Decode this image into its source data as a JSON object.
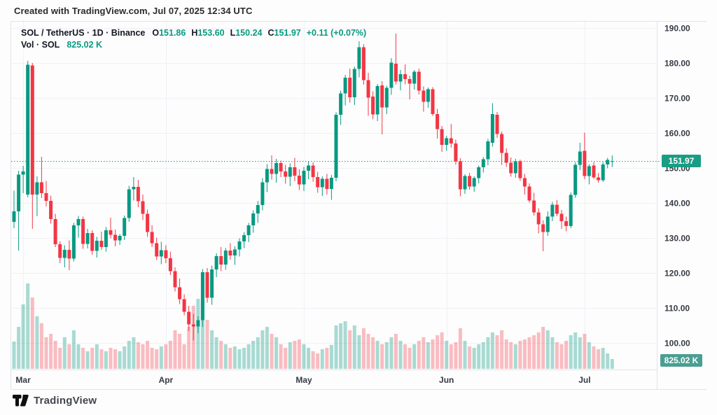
{
  "header": {
    "credit": "Created with TradingView.com, Jul 07, 2025 12:34 UTC"
  },
  "legend": {
    "symbol": "SOL / TetherUS · 1D · Binance",
    "o_label": "O",
    "o_value": "151.86",
    "h_label": "H",
    "h_value": "153.60",
    "l_label": "L",
    "l_value": "150.24",
    "c_label": "C",
    "c_value": "151.97",
    "change": "+0.11 (+0.07%)",
    "vol_title": "Vol · SOL",
    "vol_value": "825.02 K"
  },
  "footer": {
    "logo_text": "TradingView"
  },
  "colors": {
    "up": "#089981",
    "down": "#f23645",
    "vol_up": "rgba(8,153,129,0.35)",
    "vol_down": "rgba(242,54,69,0.32)",
    "grid": "#eef1f7",
    "border": "#e0e3eb",
    "axis_text": "#363a45",
    "price_line": "#089981",
    "badge_price_bg": "#199d84",
    "badge_volume_bg": "#4a9e92"
  },
  "chart_data": {
    "type": "candlestick",
    "title": "SOL / TetherUS · 1D · Binance",
    "subtitle": "Vol · SOL 825.02 K",
    "legend_position": "top-left",
    "grid": true,
    "price_axis": {
      "side": "right",
      "min": 100,
      "max": 190,
      "ticks": [
        "190.00",
        "180.00",
        "170.00",
        "160.00",
        "150.00",
        "140.00",
        "130.00",
        "120.00",
        "110.00",
        "100.00"
      ]
    },
    "time_axis": {
      "months": [
        {
          "label": "Mar",
          "candle_index": 2
        },
        {
          "label": "Apr",
          "candle_index": 33
        },
        {
          "label": "May",
          "candle_index": 63
        },
        {
          "label": "Jun",
          "candle_index": 94
        },
        {
          "label": "Jul",
          "candle_index": 124
        }
      ]
    },
    "last_price": 151.97,
    "last_price_label": "151.97",
    "last_volume_k": 825.02,
    "volume_badge_label": "825.02 K",
    "candle_format": [
      "date",
      "open",
      "high",
      "low",
      "close",
      "volume_k"
    ],
    "candles": [
      [
        "Feb 27",
        134.6,
        143.5,
        132.8,
        137.6,
        2300
      ],
      [
        "Feb 28",
        137.6,
        149.2,
        126.4,
        148.1,
        3540
      ],
      [
        "Mar 1",
        148.1,
        150.6,
        142.8,
        149.0,
        5430
      ],
      [
        "Mar 2",
        142.4,
        180.6,
        141.6,
        179.5,
        7200
      ],
      [
        "Mar 3",
        179.3,
        180.0,
        132.6,
        142.4,
        6020
      ],
      [
        "Mar 4",
        142.4,
        147.6,
        136.2,
        145.9,
        4430
      ],
      [
        "Mar 5",
        145.9,
        153.2,
        141.4,
        142.8,
        3840
      ],
      [
        "Mar 6",
        142.8,
        146.3,
        139.0,
        140.6,
        2660
      ],
      [
        "Mar 7",
        140.6,
        142.1,
        134.1,
        135.4,
        2950
      ],
      [
        "Mar 8",
        135.4,
        136.9,
        127.4,
        128.2,
        2360
      ],
      [
        "Mar 9",
        128.2,
        129.0,
        122.8,
        124.3,
        1770
      ],
      [
        "Mar 10",
        124.3,
        127.9,
        121.6,
        126.6,
        2660
      ],
      [
        "Mar 11",
        126.6,
        129.3,
        120.8,
        124.1,
        2070
      ],
      [
        "Mar 12",
        124.1,
        134.3,
        123.3,
        133.6,
        3250
      ],
      [
        "Mar 13",
        133.6,
        136.3,
        130.1,
        135.4,
        2070
      ],
      [
        "Mar 14",
        135.4,
        136.1,
        126.9,
        128.3,
        1770
      ],
      [
        "Mar 15",
        128.3,
        132.6,
        127.0,
        131.4,
        1480
      ],
      [
        "Mar 16",
        131.4,
        132.2,
        125.2,
        126.3,
        1770
      ],
      [
        "Mar 17",
        126.3,
        130.3,
        124.4,
        129.2,
        2070
      ],
      [
        "Mar 18",
        129.2,
        131.8,
        126.6,
        127.4,
        1650
      ],
      [
        "Mar 19",
        127.4,
        133.1,
        126.1,
        132.2,
        1480
      ],
      [
        "Mar 20",
        132.2,
        135.8,
        129.9,
        130.9,
        1770
      ],
      [
        "Mar 21",
        130.9,
        132.4,
        127.6,
        129.3,
        1650
      ],
      [
        "Mar 22",
        129.3,
        131.1,
        128.0,
        130.6,
        1480
      ],
      [
        "Mar 23",
        130.6,
        136.4,
        129.4,
        135.7,
        1890
      ],
      [
        "Mar 24",
        135.7,
        144.9,
        134.6,
        143.9,
        2360
      ],
      [
        "Mar 25",
        143.9,
        147.4,
        140.7,
        144.6,
        2660
      ],
      [
        "Mar 26",
        144.6,
        146.6,
        138.8,
        140.5,
        2240
      ],
      [
        "Mar 27",
        140.5,
        142.4,
        135.1,
        136.9,
        2070
      ],
      [
        "Mar 28",
        136.9,
        138.1,
        130.3,
        131.7,
        2360
      ],
      [
        "Mar 29",
        131.7,
        133.6,
        127.4,
        128.5,
        1770
      ],
      [
        "Mar 30",
        128.5,
        130.1,
        123.7,
        124.7,
        1650
      ],
      [
        "Mar 31",
        124.7,
        128.9,
        122.5,
        126.5,
        1890
      ],
      [
        "Apr 1",
        126.5,
        127.9,
        122.8,
        124.2,
        2070
      ],
      [
        "Apr 2",
        124.2,
        126.1,
        119.4,
        120.5,
        2360
      ],
      [
        "Apr 3",
        120.5,
        121.6,
        114.7,
        115.9,
        3250
      ],
      [
        "Apr 4",
        115.9,
        118.4,
        111.1,
        112.5,
        2950
      ],
      [
        "Apr 5",
        112.5,
        113.9,
        107.9,
        108.9,
        2070
      ],
      [
        "Apr 6",
        108.9,
        110.6,
        103.4,
        105.3,
        3540
      ],
      [
        "Apr 7",
        105.3,
        108.3,
        100.7,
        104.7,
        5310
      ],
      [
        "Apr 8",
        104.7,
        107.6,
        102.8,
        106.5,
        5900
      ],
      [
        "Apr 9",
        106.5,
        121.1,
        104.6,
        120.2,
        5610
      ],
      [
        "Apr 10",
        120.2,
        121.4,
        111.5,
        112.9,
        4130
      ],
      [
        "Apr 11",
        112.9,
        122.1,
        110.9,
        121.0,
        3250
      ],
      [
        "Apr 12",
        121.0,
        125.6,
        118.8,
        124.8,
        2660
      ],
      [
        "Apr 13",
        124.8,
        127.4,
        120.5,
        122.4,
        2360
      ],
      [
        "Apr 14",
        122.4,
        127.1,
        120.9,
        126.4,
        2070
      ],
      [
        "Apr 15",
        126.4,
        128.5,
        123.8,
        125.0,
        1770
      ],
      [
        "Apr 16",
        125.0,
        127.6,
        122.3,
        126.7,
        1890
      ],
      [
        "Apr 17",
        126.7,
        129.9,
        124.7,
        129.0,
        1650
      ],
      [
        "Apr 18",
        129.0,
        131.6,
        127.1,
        130.8,
        1770
      ],
      [
        "Apr 19",
        130.8,
        134.3,
        128.8,
        133.6,
        2070
      ],
      [
        "Apr 20",
        133.6,
        137.9,
        131.5,
        137.0,
        2360
      ],
      [
        "Apr 21",
        137.0,
        140.6,
        134.3,
        139.4,
        2660
      ],
      [
        "Apr 22",
        139.4,
        147.1,
        137.9,
        145.9,
        3250
      ],
      [
        "Apr 23",
        145.9,
        151.1,
        143.1,
        149.7,
        3540
      ],
      [
        "Apr 24",
        149.7,
        153.6,
        146.7,
        148.3,
        2950
      ],
      [
        "Apr 25",
        148.3,
        152.6,
        145.8,
        151.4,
        2660
      ],
      [
        "Apr 26",
        151.4,
        152.1,
        147.4,
        149.0,
        2070
      ],
      [
        "Apr 27",
        149.0,
        150.9,
        145.5,
        147.5,
        1770
      ],
      [
        "Apr 28",
        147.5,
        151.3,
        144.8,
        150.2,
        2240
      ],
      [
        "Apr 29",
        150.2,
        152.9,
        146.2,
        147.8,
        2360
      ],
      [
        "Apr 30",
        147.8,
        149.6,
        143.7,
        145.3,
        2480
      ],
      [
        "May 1",
        145.3,
        150.3,
        143.4,
        149.2,
        2070
      ],
      [
        "May 2",
        149.2,
        151.9,
        146.8,
        150.7,
        1770
      ],
      [
        "May 3",
        150.7,
        151.6,
        146.1,
        147.4,
        1480
      ],
      [
        "May 4",
        147.4,
        148.9,
        142.9,
        144.5,
        1300
      ],
      [
        "May 5",
        144.5,
        147.6,
        142.0,
        146.9,
        1650
      ],
      [
        "May 6",
        146.9,
        148.3,
        142.4,
        144.0,
        1770
      ],
      [
        "May 7",
        144.0,
        148.0,
        140.9,
        147.2,
        2010
      ],
      [
        "May 8",
        147.2,
        165.9,
        146.2,
        165.2,
        3660
      ],
      [
        "May 9",
        165.2,
        172.1,
        162.3,
        171.3,
        3840
      ],
      [
        "May 10",
        171.3,
        176.6,
        167.9,
        175.8,
        4010
      ],
      [
        "May 11",
        175.8,
        178.4,
        168.7,
        170.2,
        3250
      ],
      [
        "May 12",
        170.2,
        179.0,
        168.0,
        178.3,
        3660
      ],
      [
        "May 13",
        178.3,
        186.2,
        175.9,
        184.5,
        2830
      ],
      [
        "May 14",
        184.5,
        185.4,
        173.8,
        175.1,
        3420
      ],
      [
        "May 15",
        175.1,
        177.2,
        164.9,
        170.1,
        2950
      ],
      [
        "May 16",
        170.4,
        171.9,
        163.9,
        165.3,
        2660
      ],
      [
        "May 17",
        165.3,
        174.0,
        163.4,
        173.4,
        2360
      ],
      [
        "May 18",
        173.6,
        174.8,
        159.6,
        167.3,
        2070
      ],
      [
        "May 19",
        167.3,
        173.5,
        165.4,
        172.9,
        2240
      ],
      [
        "May 20",
        172.9,
        181.4,
        170.9,
        180.1,
        2660
      ],
      [
        "May 21",
        179.8,
        188.4,
        173.9,
        174.7,
        2950
      ],
      [
        "May 22",
        174.7,
        178.0,
        172.2,
        176.8,
        2360
      ],
      [
        "May 23",
        176.8,
        179.6,
        173.9,
        175.4,
        2070
      ],
      [
        "May 24",
        175.4,
        176.3,
        169.6,
        174.1,
        1770
      ],
      [
        "May 25",
        174.1,
        178.0,
        172.4,
        177.5,
        2070
      ],
      [
        "May 26",
        177.5,
        178.4,
        171.0,
        172.1,
        2360
      ],
      [
        "May 27",
        172.1,
        173.3,
        166.1,
        168.9,
        2660
      ],
      [
        "May 28",
        168.9,
        173.0,
        167.2,
        172.5,
        2240
      ],
      [
        "May 29",
        172.5,
        173.1,
        164.9,
        165.4,
        2480
      ],
      [
        "May 30",
        165.4,
        166.9,
        158.4,
        161.1,
        2830
      ],
      [
        "May 31",
        161.1,
        162.0,
        154.6,
        156.6,
        3070
      ],
      [
        "Jun 1",
        156.6,
        159.2,
        154.9,
        158.5,
        2360
      ],
      [
        "Jun 2",
        158.5,
        162.6,
        155.8,
        157.0,
        2070
      ],
      [
        "Jun 3",
        157.0,
        158.1,
        150.9,
        151.9,
        2240
      ],
      [
        "Jun 4",
        151.9,
        152.8,
        141.9,
        143.9,
        3420
      ],
      [
        "Jun 5",
        143.9,
        148.2,
        142.6,
        147.7,
        2360
      ],
      [
        "Jun 6",
        147.7,
        148.6,
        143.8,
        144.7,
        1890
      ],
      [
        "Jun 7",
        144.7,
        147.6,
        143.2,
        147.1,
        1770
      ],
      [
        "Jun 8",
        147.1,
        150.7,
        145.6,
        150.2,
        2070
      ],
      [
        "Jun 9",
        150.2,
        153.1,
        148.7,
        152.5,
        2240
      ],
      [
        "Jun 10",
        152.5,
        158.3,
        150.8,
        157.6,
        2660
      ],
      [
        "Jun 11",
        157.2,
        168.5,
        156.1,
        165.4,
        3070
      ],
      [
        "Jun 12",
        165.2,
        166.0,
        158.6,
        159.7,
        2830
      ],
      [
        "Jun 13",
        159.7,
        160.4,
        150.9,
        154.3,
        3250
      ],
      [
        "Jun 14",
        154.3,
        155.6,
        150.3,
        151.5,
        2480
      ],
      [
        "Jun 15",
        151.5,
        153.0,
        147.5,
        148.5,
        2240
      ],
      [
        "Jun 16",
        148.5,
        152.6,
        147.2,
        151.9,
        2070
      ],
      [
        "Jun 17",
        151.9,
        152.4,
        146.3,
        147.1,
        2360
      ],
      [
        "Jun 18",
        147.1,
        148.3,
        142.4,
        144.7,
        2480
      ],
      [
        "Jun 19",
        144.7,
        145.6,
        140.1,
        140.7,
        2660
      ],
      [
        "Jun 20",
        140.7,
        142.9,
        136.4,
        137.3,
        2830
      ],
      [
        "Jun 21",
        137.3,
        138.5,
        131.3,
        133.9,
        3070
      ],
      [
        "Jun 22",
        133.9,
        135.0,
        126.2,
        131.7,
        3540
      ],
      [
        "Jun 23",
        131.7,
        137.6,
        130.6,
        136.1,
        3250
      ],
      [
        "Jun 24",
        136.1,
        140.3,
        134.8,
        139.5,
        2660
      ],
      [
        "Jun 25",
        139.5,
        140.8,
        136.2,
        136.9,
        2240
      ],
      [
        "Jun 26",
        136.9,
        138.0,
        132.6,
        134.8,
        2070
      ],
      [
        "Jun 27",
        134.8,
        136.1,
        131.9,
        133.4,
        2360
      ],
      [
        "Jun 28",
        133.4,
        143.0,
        132.8,
        142.3,
        2830
      ],
      [
        "Jun 29",
        142.3,
        151.6,
        141.5,
        150.9,
        3070
      ],
      [
        "Jun 30",
        150.9,
        157.2,
        149.4,
        154.7,
        2660
      ],
      [
        "Jul 1",
        154.9,
        160.1,
        146.8,
        147.7,
        2950
      ],
      [
        "Jul 2",
        147.7,
        151.1,
        145.3,
        150.5,
        2240
      ],
      [
        "Jul 3",
        150.7,
        151.7,
        146.9,
        147.3,
        1890
      ],
      [
        "Jul 4",
        147.3,
        148.6,
        145.8,
        146.5,
        1650
      ],
      [
        "Jul 5",
        146.5,
        151.7,
        146.0,
        151.0,
        1770
      ],
      [
        "Jul 6",
        151.0,
        152.9,
        149.9,
        152.3,
        1300
      ],
      [
        "Jul 7",
        151.86,
        153.6,
        150.24,
        151.97,
        825
      ]
    ]
  }
}
